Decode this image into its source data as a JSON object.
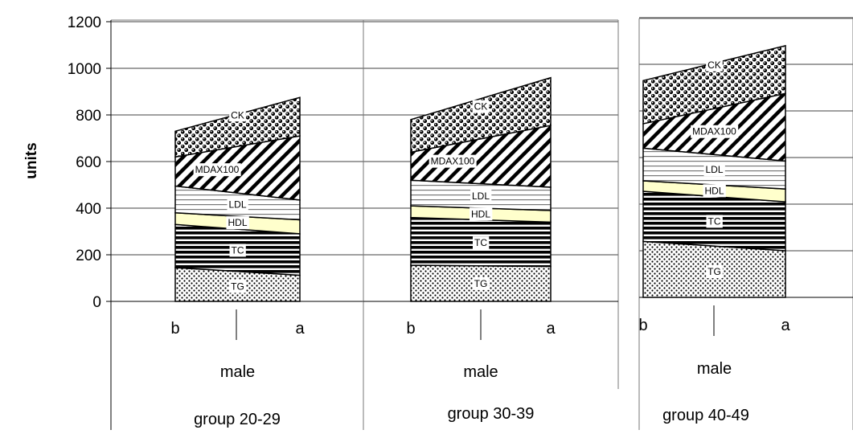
{
  "chart_data": {
    "type": "area",
    "ylabel": "units",
    "ylim": [
      0,
      1200
    ],
    "yticks": [
      "0",
      "200",
      "400",
      "600",
      "800",
      "1000",
      "1200"
    ],
    "grid": true,
    "stacked": true,
    "layer_order": [
      "TG",
      "TC",
      "HDL",
      "LDL",
      "MDAX100",
      "CK"
    ],
    "layer_colors": {
      "TG": "#ffffff",
      "TC": "#ffffff",
      "HDL": "#ffffcc",
      "LDL": "#ffffff",
      "MDAX100": "#ffffff",
      "CK": "#ffffff"
    },
    "panels": [
      {
        "group": "group 20-29",
        "sex": "male",
        "categories": [
          "b",
          "a"
        ],
        "series": [
          {
            "name": "TG",
            "values": [
              145,
              112
            ]
          },
          {
            "name": "TC",
            "values": [
              185,
              178
            ]
          },
          {
            "name": "HDL",
            "values": [
              50,
              60
            ]
          },
          {
            "name": "LDL",
            "values": [
              115,
              85
            ]
          },
          {
            "name": "MDAX100",
            "values": [
              125,
              275
            ]
          },
          {
            "name": "CK",
            "values": [
              110,
              165
            ]
          }
        ]
      },
      {
        "group": "group 30-39",
        "sex": "male",
        "categories": [
          "b",
          "a"
        ],
        "series": [
          {
            "name": "TG",
            "values": [
              155,
              150
            ]
          },
          {
            "name": "TC",
            "values": [
              205,
              190
            ]
          },
          {
            "name": "HDL",
            "values": [
              50,
              50
            ]
          },
          {
            "name": "LDL",
            "values": [
              110,
              100
            ]
          },
          {
            "name": "MDAX100",
            "values": [
              120,
              265
            ]
          },
          {
            "name": "CK",
            "values": [
              140,
              205
            ]
          }
        ]
      },
      {
        "group": "group 40-49",
        "sex": "male",
        "categories": [
          "b",
          "a"
        ],
        "series": [
          {
            "name": "TG",
            "values": [
              240,
              200
            ]
          },
          {
            "name": "TC",
            "values": [
              215,
              210
            ]
          },
          {
            "name": "HDL",
            "values": [
              45,
              55
            ]
          },
          {
            "name": "LDL",
            "values": [
              140,
              120
            ]
          },
          {
            "name": "MDAX100",
            "values": [
              105,
              290
            ]
          },
          {
            "name": "CK",
            "values": [
              185,
              205
            ]
          }
        ]
      }
    ]
  }
}
